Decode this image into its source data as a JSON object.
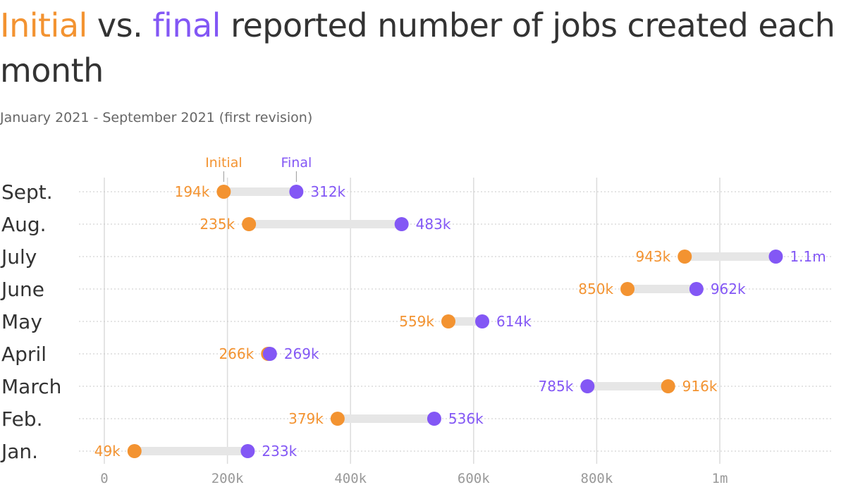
{
  "title": {
    "initial_word": "Initial",
    "vs_word": " vs. ",
    "final_word": "final",
    "rest": " reported number of jobs created each month"
  },
  "subtitle": "January 2021 - September 2021 (first revision)",
  "colors": {
    "initial": "#f39331",
    "final": "#8357f5",
    "connector": "#e6e6e6",
    "grid": "#dcdcdc",
    "text": "#333333"
  },
  "chart_data": {
    "type": "dot-range",
    "legend": {
      "initial": "Initial",
      "final": "Final"
    },
    "xlim": [
      -50000,
      1175000
    ],
    "x_ticks": [
      {
        "value": 0,
        "label": "0"
      },
      {
        "value": 200000,
        "label": "200k"
      },
      {
        "value": 400000,
        "label": "400k"
      },
      {
        "value": 600000,
        "label": "600k"
      },
      {
        "value": 800000,
        "label": "800k"
      },
      {
        "value": 1000000,
        "label": "1m"
      }
    ],
    "rows": [
      {
        "month": "Sept.",
        "initial": 194000,
        "initial_label": "194k",
        "final": 312000,
        "final_label": "312k"
      },
      {
        "month": "Aug.",
        "initial": 235000,
        "initial_label": "235k",
        "final": 483000,
        "final_label": "483k"
      },
      {
        "month": "July",
        "initial": 943000,
        "initial_label": "943k",
        "final": 1091000,
        "final_label": "1.1m"
      },
      {
        "month": "June",
        "initial": 850000,
        "initial_label": "850k",
        "final": 962000,
        "final_label": "962k"
      },
      {
        "month": "May",
        "initial": 559000,
        "initial_label": "559k",
        "final": 614000,
        "final_label": "614k"
      },
      {
        "month": "April",
        "initial": 266000,
        "initial_label": "266k",
        "final": 269000,
        "final_label": "269k"
      },
      {
        "month": "March",
        "initial": 916000,
        "initial_label": "916k",
        "final": 785000,
        "final_label": "785k"
      },
      {
        "month": "Feb.",
        "initial": 379000,
        "initial_label": "379k",
        "final": 536000,
        "final_label": "536k"
      },
      {
        "month": "Jan.",
        "initial": 49000,
        "initial_label": "49k",
        "final": 233000,
        "final_label": "233k"
      }
    ]
  }
}
